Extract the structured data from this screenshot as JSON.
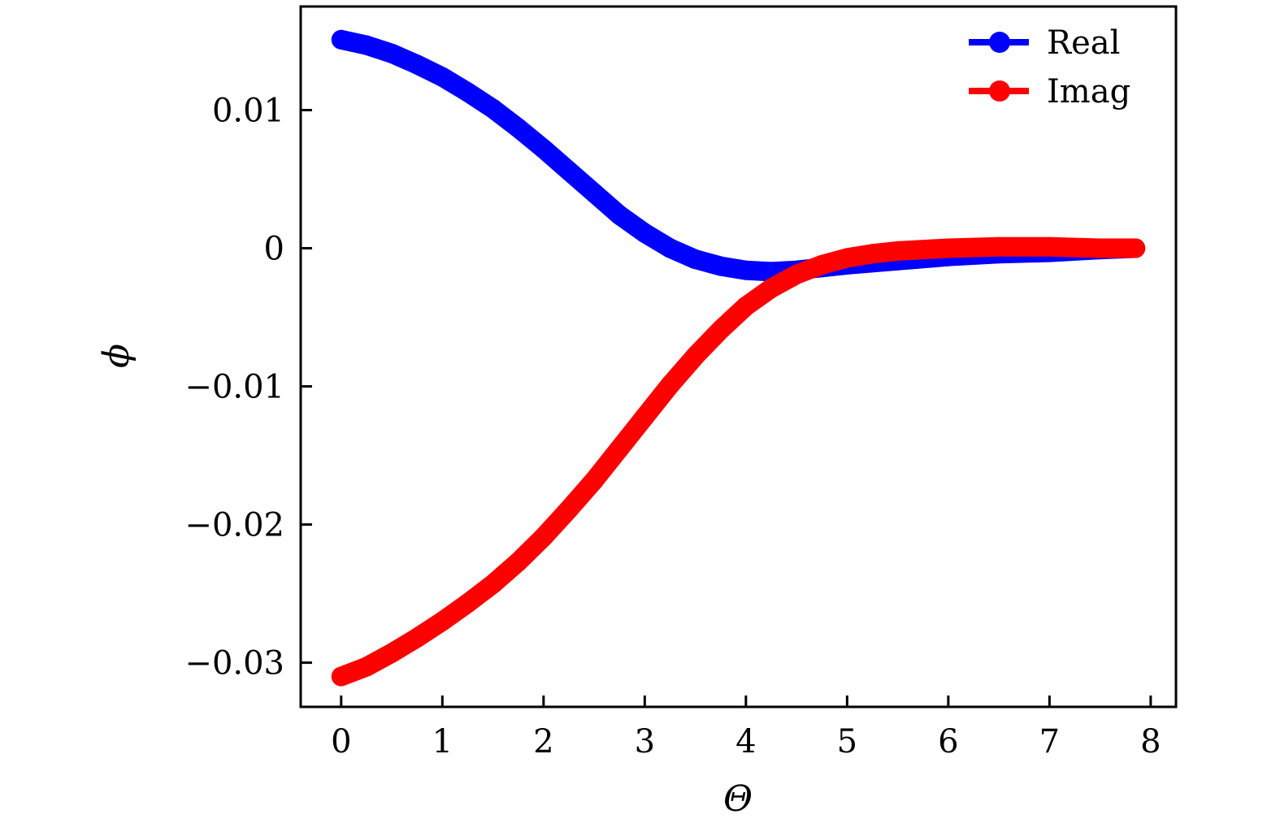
{
  "chart_data": {
    "type": "scatter",
    "xlabel": "Θ",
    "ylabel": "ϕ",
    "xlim": [
      -0.4,
      8.25
    ],
    "ylim": [
      -0.0332,
      0.0175
    ],
    "xticks": [
      0,
      1,
      2,
      3,
      4,
      5,
      6,
      7,
      8
    ],
    "xtick_labels": [
      "0",
      "1",
      "2",
      "3",
      "4",
      "5",
      "6",
      "7",
      "8"
    ],
    "yticks": [
      0.01,
      0,
      -0.01,
      -0.02,
      -0.03
    ],
    "ytick_labels": [
      "0.01",
      "0",
      "−0.01",
      "−0.02",
      "−0.03"
    ],
    "grid": false,
    "legend_position": "top-right",
    "series": [
      {
        "name": "Real",
        "color": "#0000ff",
        "x": [
          0,
          0.25,
          0.5,
          0.75,
          1.0,
          1.25,
          1.5,
          1.75,
          2.0,
          2.25,
          2.5,
          2.75,
          3.0,
          3.25,
          3.5,
          3.75,
          4.0,
          4.25,
          4.5,
          4.75,
          5.0,
          5.5,
          6.0,
          6.5,
          7.0,
          7.5,
          7.85
        ],
        "y": [
          0.0151,
          0.0147,
          0.0141,
          0.0133,
          0.0124,
          0.0113,
          0.0101,
          0.0087,
          0.0072,
          0.0056,
          0.004,
          0.0024,
          0.0011,
          0.0,
          -0.0008,
          -0.0013,
          -0.0016,
          -0.0017,
          -0.0016,
          -0.0014,
          -0.0012,
          -0.0009,
          -0.0006,
          -0.0004,
          -0.0003,
          -0.0001,
          0.0
        ]
      },
      {
        "name": "Imag",
        "color": "#ff0000",
        "x": [
          0,
          0.25,
          0.5,
          0.75,
          1.0,
          1.25,
          1.5,
          1.75,
          2.0,
          2.25,
          2.5,
          2.75,
          3.0,
          3.25,
          3.5,
          3.75,
          4.0,
          4.25,
          4.5,
          4.75,
          5.0,
          5.25,
          5.5,
          6.0,
          6.5,
          7.0,
          7.5,
          7.85
        ],
        "y": [
          -0.031,
          -0.0303,
          -0.0293,
          -0.0282,
          -0.027,
          -0.0257,
          -0.0243,
          -0.0227,
          -0.0209,
          -0.0189,
          -0.0168,
          -0.0145,
          -0.0122,
          -0.0099,
          -0.0078,
          -0.0059,
          -0.0042,
          -0.0029,
          -0.0019,
          -0.0012,
          -0.0007,
          -0.0004,
          -0.0002,
          0.0,
          0.0001,
          0.0001,
          0.0,
          0.0
        ]
      }
    ]
  }
}
